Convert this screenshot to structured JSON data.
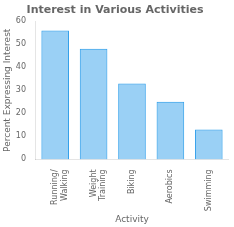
{
  "chart_data": {
    "type": "bar",
    "title": "Interest in Various Activities",
    "xlabel": "Activity",
    "ylabel": "Percent Expressing Interest",
    "categories": [
      "Running/\nWalking",
      "Weight\nTraining",
      "Biking",
      "Aerobics",
      "Swimming"
    ],
    "values": [
      56,
      48,
      33,
      25,
      13
    ],
    "ylim": [
      0,
      60
    ],
    "yticks": [
      0,
      10,
      20,
      30,
      40,
      50,
      60
    ],
    "grid": false
  }
}
